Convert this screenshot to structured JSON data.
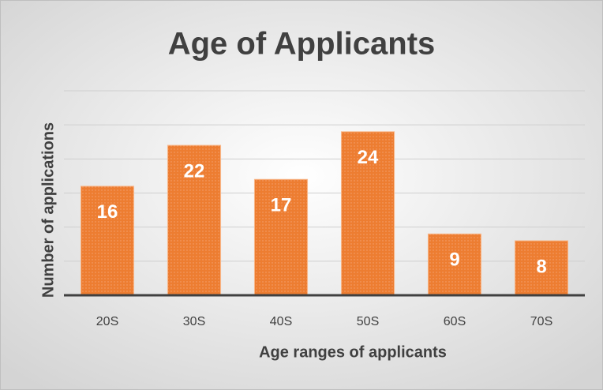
{
  "chart_data": {
    "type": "bar",
    "title": "Age of Applicants",
    "x_label": "Age ranges of applicants",
    "y_label": "Number of applications",
    "categories": [
      "20S",
      "30S",
      "40S",
      "50S",
      "60S",
      "70S"
    ],
    "values": [
      16,
      22,
      17,
      24,
      9,
      8
    ],
    "color": "#ed7d31",
    "ylim": [
      0,
      30
    ],
    "yticks": [
      0,
      5,
      10,
      15,
      20,
      25,
      30
    ],
    "grid": true
  }
}
